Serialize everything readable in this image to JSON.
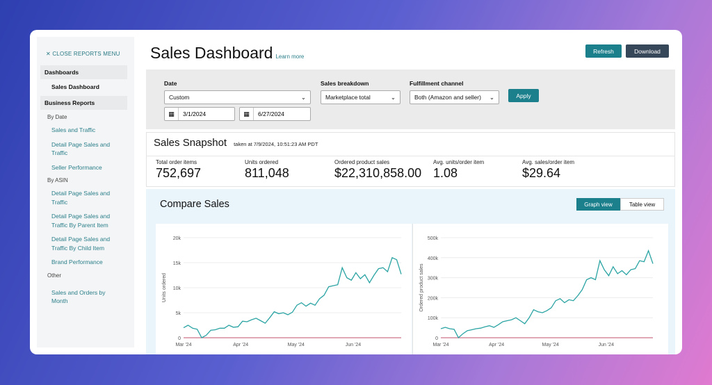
{
  "sidebar": {
    "close_label": "CLOSE REPORTS MENU",
    "dashboards_heading": "Dashboards",
    "active_item": "Sales Dashboard",
    "business_heading": "Business Reports",
    "by_date": "By Date",
    "date_links": [
      "Sales and Traffic",
      "Detail Page Sales and Traffic",
      "Seller Performance"
    ],
    "by_asin": "By ASIN",
    "asin_links": [
      "Detail Page Sales and Traffic",
      "Detail Page Sales and Traffic By Parent Item",
      "Detail Page Sales and Traffic By Child Item",
      "Brand Performance"
    ],
    "other": "Other",
    "other_links": [
      "Sales and Orders by Month"
    ]
  },
  "header": {
    "title": "Sales Dashboard",
    "learn_more": "Learn more",
    "refresh": "Refresh",
    "download": "Download"
  },
  "filters": {
    "date_label": "Date",
    "date_value": "Custom",
    "start_date": "3/1/2024",
    "end_date": "6/27/2024",
    "breakdown_label": "Sales breakdown",
    "breakdown_value": "Marketplace total",
    "channel_label": "Fulfillment channel",
    "channel_value": "Both (Amazon and seller)",
    "apply": "Apply"
  },
  "snapshot": {
    "title": "Sales Snapshot",
    "taken": "taken at 7/9/2024, 10:51:23 AM PDT",
    "metrics": [
      {
        "label": "Total order items",
        "value": "752,697"
      },
      {
        "label": "Units ordered",
        "value": "811,048"
      },
      {
        "label": "Ordered product sales",
        "value": "$22,310,858.00"
      },
      {
        "label": "Avg. units/order item",
        "value": "1.08"
      },
      {
        "label": "Avg. sales/order item",
        "value": "$29.64"
      }
    ]
  },
  "compare": {
    "title": "Compare Sales",
    "graph_view": "Graph view",
    "table_view": "Table view"
  },
  "colors": {
    "accent": "#1c7f8c",
    "line": "#2aa3a3",
    "baseline": "#c0506a",
    "dark_button": "#37475a"
  },
  "chart_data": [
    {
      "type": "line",
      "ylabel": "Units ordered",
      "ylim": [
        0,
        20000
      ],
      "yticks": [
        "0",
        "5k",
        "10k",
        "15k",
        "20k"
      ],
      "xticks": [
        "Mar '24",
        "Apr '24",
        "May '24",
        "Jun '24"
      ],
      "x_range": [
        "2024-03-01",
        "2024-06-27"
      ],
      "grid": true,
      "values": [
        2000,
        2500,
        1900,
        1700,
        0,
        500,
        1500,
        1600,
        1900,
        1900,
        2500,
        2100,
        2200,
        3300,
        3200,
        3600,
        3900,
        3400,
        2900,
        4000,
        5200,
        4800,
        5000,
        4600,
        5100,
        6500,
        7000,
        6300,
        6900,
        6500,
        7800,
        8500,
        10200,
        10400,
        10600,
        14000,
        12000,
        11500,
        13000,
        11800,
        12600,
        11000,
        12500,
        13800,
        14000,
        13200,
        16000,
        15600,
        12700
      ]
    },
    {
      "type": "line",
      "ylabel": "Ordered product sales",
      "ylim": [
        0,
        500000
      ],
      "yticks": [
        "0",
        "100k",
        "200k",
        "300k",
        "400k",
        "500k"
      ],
      "xticks": [
        "Mar '24",
        "Apr '24",
        "May '24",
        "Jun '24"
      ],
      "x_range": [
        "2024-03-01",
        "2024-06-27"
      ],
      "grid": true,
      "values": [
        45000,
        52000,
        45000,
        42000,
        0,
        20000,
        35000,
        40000,
        45000,
        48000,
        55000,
        60000,
        52000,
        65000,
        80000,
        85000,
        90000,
        100000,
        85000,
        70000,
        100000,
        140000,
        130000,
        125000,
        135000,
        150000,
        185000,
        195000,
        175000,
        190000,
        185000,
        210000,
        240000,
        290000,
        300000,
        290000,
        385000,
        340000,
        310000,
        355000,
        320000,
        335000,
        315000,
        340000,
        345000,
        385000,
        380000,
        435000,
        370000
      ]
    }
  ]
}
